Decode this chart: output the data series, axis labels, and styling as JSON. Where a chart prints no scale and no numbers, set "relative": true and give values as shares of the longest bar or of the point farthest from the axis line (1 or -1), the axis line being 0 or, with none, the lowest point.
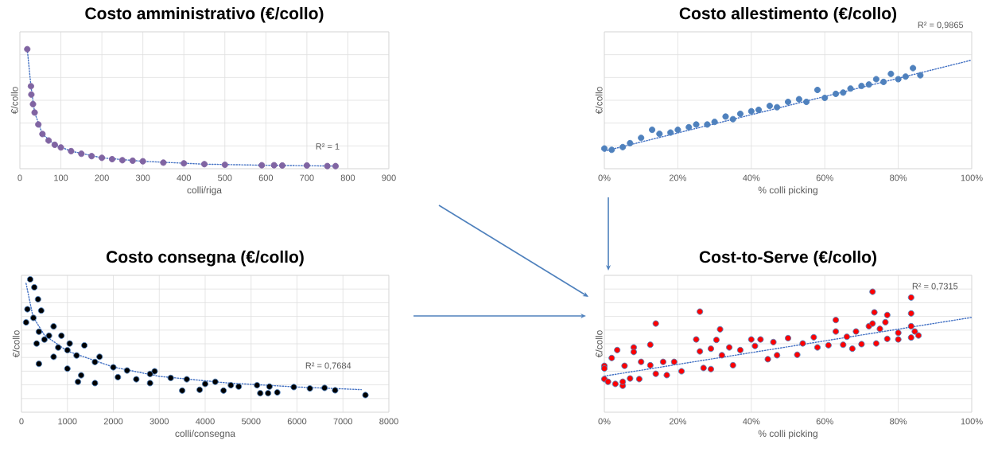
{
  "chart_data": [
    {
      "type": "scatter",
      "title": "Costo amministrativo (€/collo)",
      "xlabel": "colli/riga",
      "ylabel": "€/collo",
      "relative": true,
      "grid": true,
      "marker": "circle",
      "xlim": [
        0,
        900
      ],
      "xticks": [
        0,
        100,
        200,
        300,
        400,
        500,
        600,
        700,
        800,
        900
      ],
      "annotations": [
        "R² = 1"
      ],
      "series": [
        {
          "type": "scatter",
          "color": "#8064a2",
          "x": [
            18,
            27,
            28,
            32,
            36,
            45,
            55,
            70,
            85,
            100,
            125,
            150,
            175,
            200,
            225,
            250,
            275,
            300,
            350,
            400,
            450,
            500,
            590,
            620,
            640,
            700,
            750,
            770
          ],
          "values": [
            1.0,
            0.69,
            0.62,
            0.54,
            0.47,
            0.37,
            0.29,
            0.236,
            0.2,
            0.178,
            0.147,
            0.125,
            0.105,
            0.091,
            0.08,
            0.071,
            0.067,
            0.062,
            0.051,
            0.045,
            0.038,
            0.033,
            0.029,
            0.029,
            0.027,
            0.027,
            0.022,
            0.022
          ]
        },
        {
          "type": "line",
          "color": "#4472c4",
          "line_style": "dotted",
          "marker": "none",
          "x": [
            18,
            27,
            36,
            55,
            85,
            125,
            200,
            300,
            450,
            600,
            770
          ],
          "values": [
            1.0,
            0.69,
            0.47,
            0.29,
            0.2,
            0.147,
            0.091,
            0.062,
            0.038,
            0.029,
            0.022
          ]
        }
      ]
    },
    {
      "type": "scatter",
      "title": "Costo allestimento (€/collo)",
      "xlabel": "% colli picking",
      "ylabel": "€/collo",
      "relative": true,
      "grid": true,
      "marker": "circle",
      "xlim": [
        0,
        100
      ],
      "xticks": [
        {
          "value": 0,
          "label": "0%"
        },
        {
          "value": 20,
          "label": "20%"
        },
        {
          "value": 40,
          "label": "40%"
        },
        {
          "value": 60,
          "label": "60%"
        },
        {
          "value": 80,
          "label": "80%"
        },
        {
          "value": 100,
          "label": "100%"
        }
      ],
      "annotations": [
        "R² = 0,9865"
      ],
      "series": [
        {
          "type": "scatter",
          "color": "#4f81bd",
          "x": [
            0,
            2,
            5,
            7,
            10,
            13,
            15,
            18,
            20,
            23,
            25,
            28,
            30,
            33,
            35,
            37,
            40,
            42,
            45,
            47,
            50,
            53,
            55,
            58,
            60,
            63,
            65,
            67,
            70,
            72,
            74,
            76,
            78,
            80,
            82,
            84,
            86
          ],
          "values": [
            0.186,
            0.174,
            0.199,
            0.235,
            0.284,
            0.358,
            0.321,
            0.333,
            0.358,
            0.382,
            0.407,
            0.407,
            0.431,
            0.48,
            0.456,
            0.505,
            0.529,
            0.542,
            0.578,
            0.566,
            0.615,
            0.64,
            0.615,
            0.725,
            0.652,
            0.689,
            0.701,
            0.738,
            0.762,
            0.775,
            0.824,
            0.799,
            0.873,
            0.824,
            0.848,
            0.926,
            0.86
          ]
        },
        {
          "type": "line",
          "color": "#4472c4",
          "line_style": "dotted",
          "marker": "none",
          "x": [
            0,
            100
          ],
          "values": [
            0.162,
            1.0
          ]
        }
      ]
    },
    {
      "type": "scatter",
      "title": "Costo consegna (€/collo)",
      "xlabel": "colli/consegna",
      "ylabel": "€/collo",
      "relative": true,
      "grid": true,
      "marker": "circle",
      "xlim": [
        0,
        8000
      ],
      "xticks": [
        0,
        1000,
        2000,
        3000,
        4000,
        5000,
        6000,
        7000,
        8000
      ],
      "annotations": [
        "R² = 0,7684"
      ],
      "series": [
        {
          "type": "scatter",
          "color": "#000000",
          "x": [
            190,
            280,
            360,
            130,
            430,
            260,
            100,
            700,
            380,
            600,
            870,
            500,
            1050,
            330,
            800,
            1370,
            1000,
            380,
            1200,
            700,
            1700,
            1600,
            1000,
            1230,
            1600,
            1300,
            2000,
            2300,
            2100,
            2500,
            2800,
            2800,
            2900,
            3250,
            3600,
            3500,
            3880,
            4000,
            4220,
            4400,
            4560,
            4730,
            5130,
            5200,
            5370,
            5400,
            5570,
            5930,
            6280,
            6600,
            6830,
            7490
          ],
          "values": [
            1.0,
            0.94,
            0.85,
            0.775,
            0.765,
            0.71,
            0.676,
            0.646,
            0.606,
            0.576,
            0.576,
            0.547,
            0.517,
            0.517,
            0.487,
            0.503,
            0.467,
            0.364,
            0.427,
            0.417,
            0.417,
            0.378,
            0.328,
            0.229,
            0.219,
            0.278,
            0.338,
            0.314,
            0.264,
            0.248,
            0.288,
            0.219,
            0.308,
            0.258,
            0.248,
            0.163,
            0.169,
            0.213,
            0.229,
            0.163,
            0.203,
            0.193,
            0.203,
            0.143,
            0.143,
            0.193,
            0.149,
            0.189,
            0.179,
            0.183,
            0.165,
            0.129
          ]
        },
        {
          "type": "line",
          "color": "#4472c4",
          "line_style": "dotted",
          "marker": "none",
          "x": [
            100,
            250,
            500,
            1000,
            2000,
            3000,
            4500,
            6000,
            7400
          ],
          "values": [
            0.97,
            0.72,
            0.58,
            0.46,
            0.34,
            0.27,
            0.22,
            0.19,
            0.17
          ]
        }
      ]
    },
    {
      "type": "scatter",
      "title": "Cost-to-Serve (€/collo)",
      "xlabel": "% colli picking",
      "ylabel": "€/collo",
      "relative": true,
      "grid": true,
      "marker": "circle",
      "xlim": [
        0,
        100
      ],
      "xticks": [
        {
          "value": 0,
          "label": "0%"
        },
        {
          "value": 20,
          "label": "20%"
        },
        {
          "value": 40,
          "label": "40%"
        },
        {
          "value": 60,
          "label": "60%"
        },
        {
          "value": 80,
          "label": "80%"
        },
        {
          "value": 100,
          "label": "100%"
        }
      ],
      "annotations": [
        "R² = 0,7315"
      ],
      "series": [
        {
          "type": "scatter",
          "color": "#ff0000",
          "x": [
            0,
            0,
            0,
            1,
            2,
            3,
            3.5,
            5,
            5,
            5.5,
            7,
            8,
            8,
            9.5,
            10,
            12.5,
            12.5,
            14,
            14,
            16,
            17,
            19,
            21,
            25,
            26,
            26,
            27,
            29,
            29,
            31.5,
            30.5,
            32,
            34,
            35,
            37,
            40,
            41,
            42.5,
            44.5,
            46,
            47,
            50,
            52.5,
            54,
            57,
            58,
            61,
            63,
            63,
            65,
            66,
            67.5,
            68.5,
            70,
            72,
            73,
            73,
            73.5,
            74,
            75,
            76.5,
            77,
            77,
            80,
            80,
            83.5,
            83.5,
            83.5,
            83.5,
            84.5,
            85.5
          ],
          "values": [
            0.385,
            0.363,
            0.275,
            0.253,
            0.45,
            0.235,
            0.516,
            0.22,
            0.253,
            0.385,
            0.28,
            0.538,
            0.5,
            0.275,
            0.418,
            0.56,
            0.39,
            0.736,
            0.319,
            0.418,
            0.308,
            0.418,
            0.34,
            0.604,
            0.835,
            0.505,
            0.367,
            0.527,
            0.358,
            0.688,
            0.6,
            0.473,
            0.538,
            0.39,
            0.516,
            0.604,
            0.55,
            0.604,
            0.44,
            0.582,
            0.473,
            0.615,
            0.477,
            0.571,
            0.622,
            0.538,
            0.556,
            0.765,
            0.67,
            0.56,
            0.626,
            0.527,
            0.67,
            0.565,
            0.714,
            1.0,
            0.736,
            0.829,
            0.571,
            0.692,
            0.747,
            0.807,
            0.609,
            0.604,
            0.659,
            0.952,
            0.82,
            0.714,
            0.62,
            0.67,
            0.637
          ]
        },
        {
          "type": "line",
          "color": "#4472c4",
          "line_style": "dotted",
          "marker": "none",
          "x": [
            0,
            100
          ],
          "values": [
            0.3,
            0.787
          ]
        }
      ]
    }
  ]
}
